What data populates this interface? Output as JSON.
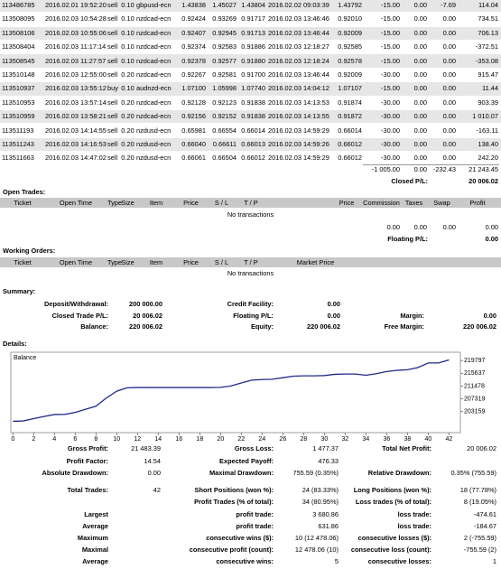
{
  "closed_trades": {
    "rows": [
      [
        "113486785",
        "2016.02.01 19:52:20",
        "sell",
        "0.10",
        "gbpusd-ecn",
        "1.43838",
        "1.45027",
        "1.43804",
        "2016.02.02 09:03:39",
        "1.43792",
        "-15.00",
        "0.00",
        "-7.69",
        "114.04"
      ],
      [
        "113508095",
        "2016.02.03 10:54:28",
        "sell",
        "0.10",
        "nzdcad-ecn",
        "0.92424",
        "0.93269",
        "0.91717",
        "2016.02.03 13:46:46",
        "0.92010",
        "-15.00",
        "0.00",
        "0.00",
        "734.51"
      ],
      [
        "113508106",
        "2016.02.03 10:55:06",
        "sell",
        "0.10",
        "nzdcad-ecn",
        "0.92407",
        "0.92945",
        "0.91713",
        "2016.02.03 13:46:44",
        "0.92009",
        "-15.00",
        "0.00",
        "0.00",
        "706.13"
      ],
      [
        "113508404",
        "2016.02.03 11:17:14",
        "sell",
        "0.10",
        "nzdcad-ecn",
        "0.92374",
        "0.92583",
        "0.91886",
        "2016.02.03 12:18:27",
        "0.92585",
        "-15.00",
        "0.00",
        "0.00",
        "-372.51"
      ],
      [
        "113508545",
        "2016.02.03 11:27:57",
        "sell",
        "0.10",
        "nzdcad-ecn",
        "0.92378",
        "0.92577",
        "0.91880",
        "2016.02.03 12:18:24",
        "0.92578",
        "-15.00",
        "0.00",
        "0.00",
        "-353.08"
      ],
      [
        "113510148",
        "2016.02.03 12:55:00",
        "sell",
        "0.20",
        "nzdcad-ecn",
        "0.92267",
        "0.92581",
        "0.91700",
        "2016.02.03 13:46:44",
        "0.92009",
        "-30.00",
        "0.00",
        "0.00",
        "915.47"
      ],
      [
        "113510937",
        "2016.02.03 13:55:12",
        "buy",
        "0.10",
        "audnzd-ecn",
        "1.07100",
        "1.05998",
        "1.07740",
        "2016.02.03 14:04:12",
        "1.07107",
        "-15.00",
        "0.00",
        "0.00",
        "11.44"
      ],
      [
        "113510953",
        "2016.02.03 13:57:14",
        "sell",
        "0.20",
        "nzdcad-ecn",
        "0.92128",
        "0.92123",
        "0.91838",
        "2016.02.03 14:13:53",
        "0.91874",
        "-30.00",
        "0.00",
        "0.00",
        "903.39"
      ],
      [
        "113510959",
        "2016.02.03 13:58:21",
        "sell",
        "0.20",
        "nzdcad-ecn",
        "0.92156",
        "0.92152",
        "0.91838",
        "2016.02.03 14:13:55",
        "0.91872",
        "-30.00",
        "0.00",
        "0.00",
        "1 010.07"
      ],
      [
        "113511193",
        "2016.02.03 14:14:55",
        "sell",
        "0.20",
        "nzdusd-ecn",
        "0.65981",
        "0.66554",
        "0.66014",
        "2016.02.03 14:59:29",
        "0.66014",
        "-30.00",
        "0.00",
        "0.00",
        "-163.11"
      ],
      [
        "113511243",
        "2016.02.03 14:16:53",
        "sell",
        "0.20",
        "nzdusd-ecn",
        "0.66040",
        "0.66611",
        "0.66013",
        "2016.02.03 14:59:26",
        "0.66012",
        "-30.00",
        "0.00",
        "0.00",
        "138.40"
      ],
      [
        "113511663",
        "2016.02.03 14:47:02",
        "sell",
        "0.20",
        "nzdusd-ecn",
        "0.66061",
        "0.66504",
        "0.66012",
        "2016.02.03 14:59:29",
        "0.66012",
        "-30.00",
        "0.00",
        "0.00",
        "242.20"
      ]
    ],
    "totals": [
      "-1 005.00",
      "0.00",
      "-232.43",
      "21 243.45"
    ],
    "closed_pl_label": "Closed P/L:",
    "closed_pl": "20 006.02"
  },
  "open_trades": {
    "title": "Open Trades:",
    "header": [
      "Ticket",
      "Open Time",
      "Type",
      "Size",
      "Item",
      "Price",
      "S / L",
      "T / P",
      null,
      "Price",
      "Commission",
      "Taxes",
      "Swap",
      "Profit"
    ],
    "empty": "No transactions",
    "totals": [
      "0.00",
      "0.00",
      "0.00",
      "0.00"
    ],
    "floating_label": "Floating P/L:",
    "floating": "0.00"
  },
  "working_orders": {
    "title": "Working Orders:",
    "header": [
      "Ticket",
      "Open Time",
      "Type",
      "Size",
      "Item",
      "Price",
      "S / L",
      "T / P",
      "Market Price"
    ],
    "empty": "No transactions"
  },
  "summary": {
    "title": "Summary:",
    "rows": [
      [
        "Deposit/Withdrawal:",
        "200 000.00",
        "Credit Facility:",
        "0.00",
        null,
        null
      ],
      [
        "Closed Trade P/L:",
        "20 006.02",
        "Floating P/L:",
        "0.00",
        "Margin:",
        "0.00"
      ],
      [
        "Balance:",
        "220 006.02",
        "Equity:",
        "220 006.02",
        "Free Margin:",
        "220 006.02"
      ]
    ]
  },
  "details": {
    "title": "Details:",
    "chart": {
      "type": "line",
      "title": "Balance",
      "color": "#1f2a8a",
      "x": [
        0,
        1,
        2,
        3,
        4,
        5,
        6,
        7,
        8,
        9,
        10,
        11,
        12,
        13,
        14,
        15,
        16,
        17,
        18,
        19,
        20,
        21,
        22,
        23,
        24,
        25,
        26,
        27,
        28,
        29,
        30,
        31,
        32,
        33,
        34,
        35,
        36,
        37,
        38,
        39,
        40,
        41,
        42
      ],
      "values": [
        200000,
        200114,
        200848,
        201554,
        202200,
        202250,
        202900,
        203900,
        204900,
        207600,
        209800,
        210900,
        211000,
        211000,
        211000,
        211000,
        211000,
        211000,
        211000,
        211000,
        211050,
        211500,
        212500,
        213400,
        213600,
        213700,
        214200,
        214700,
        214800,
        214800,
        214900,
        215300,
        215400,
        215400,
        215000,
        215500,
        216200,
        216600,
        216800,
        217500,
        219000,
        219000,
        220006
      ],
      "xlim": [
        -0.2,
        43.1
      ],
      "ylim": [
        196300,
        222500
      ],
      "xticks": [
        0,
        2,
        4,
        6,
        8,
        10,
        12,
        14,
        16,
        18,
        20,
        22,
        24,
        26,
        28,
        30,
        32,
        34,
        36,
        38,
        40,
        42
      ],
      "yticks": [
        203159,
        207319,
        211478,
        215637,
        219797
      ]
    },
    "stats": [
      [
        "Gross Profit:",
        "21 483.39",
        "Gross Loss:",
        "1 477.37",
        "Total Net Profit:",
        "20 006.02"
      ],
      [
        "Profit Factor:",
        "14.54",
        "Expected Payoff:",
        "476.33",
        null,
        null
      ],
      [
        "Absolute Drawdown:",
        "0.00",
        "Maximal Drawdown:",
        "755.59 (0.35%)",
        "Relative Drawdown:",
        "0.35% (755.59)"
      ],
      [
        "Total Trades:",
        "42",
        "Short Positions (won %):",
        "24 (83.33%)",
        "Long Positions (won %):",
        "18 (77.78%)"
      ],
      [
        null,
        null,
        "Profit Trades (% of total):",
        "34 (80.95%)",
        "Loss trades (% of total):",
        "8 (19.05%)"
      ],
      [
        "Largest",
        null,
        "profit trade:",
        "3 680.86",
        "loss trade:",
        "-474.61"
      ],
      [
        "Average",
        null,
        "profit trade:",
        "631.86",
        "loss trade:",
        "-184.67"
      ],
      [
        "Maximum",
        null,
        "consecutive wins ($):",
        "10 (12 478.06)",
        "consecutive losses ($):",
        "2 (-755.59)"
      ],
      [
        "Maximal",
        null,
        "consecutive profit (count):",
        "12 478.06 (10)",
        "consecutive loss (count):",
        "-755.59 (2)"
      ],
      [
        "Average",
        null,
        "consecutive wins:",
        "5",
        "consecutive losses:",
        "1"
      ]
    ]
  }
}
